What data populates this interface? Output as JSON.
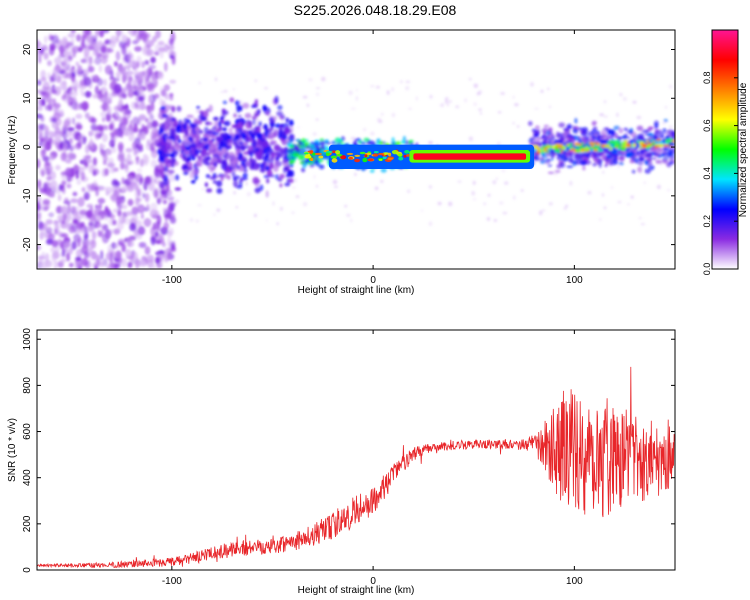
{
  "figure_title": "S225.2026.048.18.29.E08",
  "chart_data": [
    {
      "type": "heatmap",
      "panel": "top",
      "title": "S225.2026.048.18.29.E08",
      "xlabel": "Height of straight line (km)",
      "ylabel": "Frequency (Hz)",
      "xlim": [
        -167,
        150
      ],
      "ylim": [
        -25,
        24
      ],
      "xticks": [
        -100,
        0,
        100
      ],
      "yticks": [
        -20,
        -10,
        0,
        10,
        20
      ],
      "colorbar": {
        "label": "Normalized spectral amplitude",
        "range": [
          0.0,
          1.0
        ],
        "ticks": [
          0.0,
          0.2,
          0.4,
          0.6,
          0.8
        ],
        "colormap": [
          "#ffffff",
          "#8a2be2",
          "#0000ff",
          "#00e5ff",
          "#00ff00",
          "#ffff00",
          "#ff7f00",
          "#ff0000",
          "#ff1493"
        ]
      },
      "features": [
        {
          "x_range": [
            -167,
            -100
          ],
          "freq_range": [
            -25,
            24
          ],
          "amplitude": 0.1,
          "description": "broadband noise"
        },
        {
          "x_range": [
            -105,
            -40
          ],
          "freq_range": [
            -8,
            8
          ],
          "amplitude": 0.2
        },
        {
          "x_range": [
            -40,
            20
          ],
          "freq_center": -1.5,
          "freq_halfwidth": 3,
          "amplitude": 0.6
        },
        {
          "x_range": [
            20,
            75
          ],
          "freq_center": -2,
          "freq_halfwidth": 1,
          "amplitude": 0.95
        },
        {
          "x_range": [
            80,
            150
          ],
          "freq_range": [
            -5,
            5
          ],
          "amplitude": 0.3
        }
      ]
    },
    {
      "type": "line",
      "panel": "bottom",
      "xlabel": "Height of straight line (km)",
      "ylabel": "SNR (10 * v/v)",
      "xlim": [
        -167,
        150
      ],
      "ylim": [
        0,
        1040
      ],
      "xticks": [
        -100,
        0,
        100
      ],
      "yticks": [
        0,
        200,
        400,
        600,
        800,
        1000
      ],
      "series": [
        {
          "name": "SNR",
          "color": "#e8262a",
          "x": [
            -167,
            -140,
            -120,
            -100,
            -90,
            -80,
            -70,
            -60,
            -50,
            -40,
            -30,
            -20,
            -10,
            0,
            5,
            10,
            15,
            20,
            25,
            30,
            40,
            50,
            60,
            70,
            80,
            85,
            90,
            95,
            100,
            105,
            110,
            115,
            120,
            125,
            130,
            135,
            140,
            145,
            150
          ],
          "values": [
            20,
            20,
            25,
            35,
            50,
            70,
            90,
            100,
            110,
            120,
            150,
            190,
            250,
            300,
            350,
            420,
            460,
            500,
            520,
            530,
            540,
            545,
            545,
            545,
            545,
            540,
            540,
            530,
            520,
            510,
            500,
            500,
            500,
            500,
            490,
            480,
            490,
            500,
            520
          ],
          "noise": [
            5,
            10,
            15,
            20,
            25,
            30,
            35,
            35,
            40,
            40,
            50,
            60,
            70,
            60,
            60,
            50,
            40,
            30,
            25,
            20,
            20,
            20,
            20,
            20,
            40,
            100,
            200,
            260,
            260,
            280,
            300,
            280,
            240,
            220,
            200,
            180,
            180,
            160,
            150
          ]
        }
      ]
    }
  ]
}
